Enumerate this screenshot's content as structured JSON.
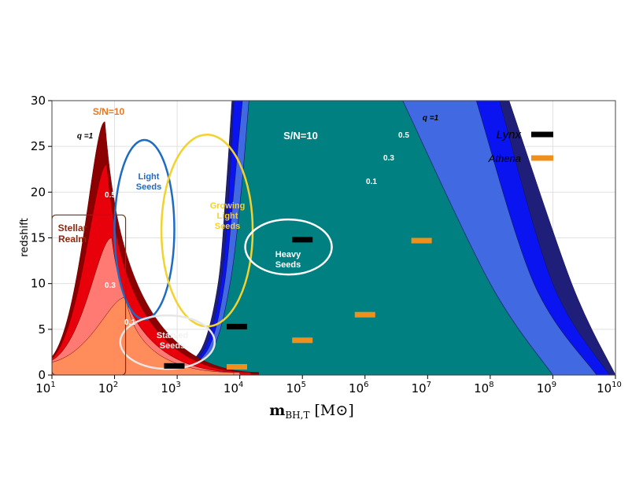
{
  "chart_data": {
    "type": "area",
    "xscale": "log",
    "xlim": [
      10,
      10000000000
    ],
    "ylim": [
      0,
      30
    ],
    "grid": true,
    "xlabel": "m_BH,T [M_⊙]",
    "ylabel": "redshift",
    "x_ticks": [
      {
        "base": "10",
        "exp": "1"
      },
      {
        "base": "10",
        "exp": "2"
      },
      {
        "base": "10",
        "exp": "3"
      },
      {
        "base": "10",
        "exp": "4"
      },
      {
        "base": "10",
        "exp": "5"
      },
      {
        "base": "10",
        "exp": "6"
      },
      {
        "base": "10",
        "exp": "7"
      },
      {
        "base": "10",
        "exp": "8"
      },
      {
        "base": "10",
        "exp": "9"
      },
      {
        "base": "10",
        "exp": "10"
      }
    ],
    "y_ticks": [
      "0",
      "5",
      "10",
      "15",
      "20",
      "25",
      "30"
    ],
    "colors": {
      "athena_q1": "#8b0000",
      "athena_q05": "#e8000b",
      "athena_q03": "#ff7a72",
      "athena_q01": "#ff8c5a",
      "lynx_q1": "#1f1f7a",
      "lynx_q05": "#0a14f0",
      "lynx_q03": "#4169e1",
      "lynx_q01": "#008080",
      "lynx_marker": "#000000",
      "athena_marker": "#f0901c",
      "light_seeds": "#1e6bc4",
      "growing_seeds": "#f2d22e",
      "heavy_seeds": "#ffffff",
      "starved_seeds": "#e6e6e6",
      "stellar_realm": "#8b2a10",
      "sn_athena": "#e87722"
    },
    "athena_regions": [
      {
        "name": "q=1",
        "peak_x": 70,
        "peak_z": 27.7,
        "left_x": 10,
        "left_z": 2,
        "right_x": 20000,
        "right_z": 0.3
      },
      {
        "name": "0.5",
        "peak_x": 75,
        "peak_z": 23,
        "left_x": 10,
        "left_z": 1.8,
        "right_x": 15000,
        "right_z": 0.3
      },
      {
        "name": "0.3",
        "peak_x": 90,
        "peak_z": 15,
        "left_x": 10,
        "left_z": 1.6,
        "right_x": 10000,
        "right_z": 0.3
      },
      {
        "name": "0.1",
        "peak_x": 150,
        "peak_z": 8.5,
        "left_x": 10,
        "left_z": 1.4,
        "right_x": 8000,
        "right_z": 0.3
      }
    ],
    "lynx_regions": [
      {
        "name": "q=1",
        "left": [
          [
            900,
            0
          ],
          [
            2500,
            3
          ],
          [
            4500,
            10
          ],
          [
            6000,
            20
          ],
          [
            7500,
            30
          ]
        ],
        "right": [
          [
            200000000,
            30
          ],
          [
            2000000000,
            10
          ],
          [
            10000000000,
            0
          ]
        ]
      },
      {
        "name": "0.5",
        "left": [
          [
            1000,
            0
          ],
          [
            2800,
            3
          ],
          [
            5000,
            10
          ],
          [
            6700,
            20
          ],
          [
            8000,
            30
          ]
        ],
        "right": [
          [
            140000000,
            30
          ],
          [
            1000000000,
            10
          ],
          [
            8000000000,
            0
          ]
        ]
      },
      {
        "name": "0.3",
        "left": [
          [
            1100,
            0
          ],
          [
            3200,
            3
          ],
          [
            5700,
            10
          ],
          [
            8000,
            20
          ],
          [
            11000,
            30
          ]
        ],
        "right": [
          [
            60000000,
            30
          ],
          [
            500000000,
            10
          ],
          [
            5000000000,
            0
          ]
        ]
      },
      {
        "name": "0.1",
        "left": [
          [
            1300,
            0
          ],
          [
            3800,
            3
          ],
          [
            7000,
            10
          ],
          [
            10500,
            20
          ],
          [
            14000,
            30
          ]
        ],
        "right": [
          [
            4000000,
            30
          ],
          [
            100000000,
            10
          ],
          [
            1000000000,
            0
          ]
        ]
      }
    ],
    "lynx_points": [
      [
        900,
        1
      ],
      [
        9000,
        5.3
      ],
      [
        100000,
        14.8
      ]
    ],
    "athena_points": [
      [
        9000,
        0.9
      ],
      [
        100000,
        3.8
      ],
      [
        1000000,
        6.6
      ],
      [
        8000000,
        14.7
      ]
    ],
    "seed_regions": [
      {
        "name": "Light Seeds",
        "label_lines": [
          "Light",
          "Seeds"
        ],
        "cx": 300,
        "cz": 15.9
      },
      {
        "name": "Growing Light Seeds",
        "label_lines": [
          "Growing",
          "Light",
          "Seeds"
        ],
        "cx": 3000,
        "cz": 15.8
      },
      {
        "name": "Heavy Seeds",
        "label_lines": [
          "Heavy",
          "Seeds"
        ],
        "cx": 60000,
        "cz": 14
      },
      {
        "name": "Starved Seeds",
        "label_lines": [
          "Starved",
          "Seeds"
        ],
        "cx": 700,
        "cz": 3.6
      }
    ],
    "stellar_realm": {
      "label_lines": [
        "Stellar",
        "Realm"
      ],
      "x_range": [
        10,
        150
      ],
      "z_range": [
        0,
        17.5
      ]
    },
    "annotations": {
      "sn_athena": "S/N=10",
      "sn_lynx": "S/N=10",
      "athena_q": [
        "q =1",
        "0.5",
        "0.3",
        "0.1"
      ],
      "lynx_q": [
        "q =1",
        "0.5",
        "0.3",
        "0.1"
      ]
    },
    "legend": {
      "placement": "top-right",
      "entries": [
        {
          "name": "Lynx",
          "color": "#000000"
        },
        {
          "name": "Athena",
          "color": "#f0901c"
        }
      ]
    }
  }
}
